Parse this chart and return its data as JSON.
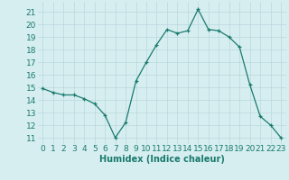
{
  "x": [
    0,
    1,
    2,
    3,
    4,
    5,
    6,
    7,
    8,
    9,
    10,
    11,
    12,
    13,
    14,
    15,
    16,
    17,
    18,
    19,
    20,
    21,
    22,
    23
  ],
  "y": [
    14.9,
    14.6,
    14.4,
    14.4,
    14.1,
    13.7,
    12.8,
    11.0,
    12.2,
    15.5,
    17.0,
    18.4,
    19.6,
    19.3,
    19.5,
    21.2,
    19.6,
    19.5,
    19.0,
    18.2,
    15.2,
    12.7,
    12.0,
    11.0
  ],
  "line_color": "#1a7a6e",
  "marker": "+",
  "marker_color": "#1a7a6e",
  "bg_color": "#d6eef0",
  "grid_color": "#b8d8dc",
  "xlabel": "Humidex (Indice chaleur)",
  "ylabel_ticks": [
    11,
    12,
    13,
    14,
    15,
    16,
    17,
    18,
    19,
    20,
    21
  ],
  "ylim": [
    10.5,
    21.8
  ],
  "xlim": [
    -0.5,
    23.5
  ],
  "xtick_labels": [
    "0",
    "1",
    "2",
    "3",
    "4",
    "5",
    "6",
    "7",
    "8",
    "9",
    "10",
    "11",
    "12",
    "13",
    "14",
    "15",
    "16",
    "17",
    "18",
    "19",
    "20",
    "21",
    "22",
    "23"
  ],
  "label_fontsize": 7,
  "tick_fontsize": 6.5
}
